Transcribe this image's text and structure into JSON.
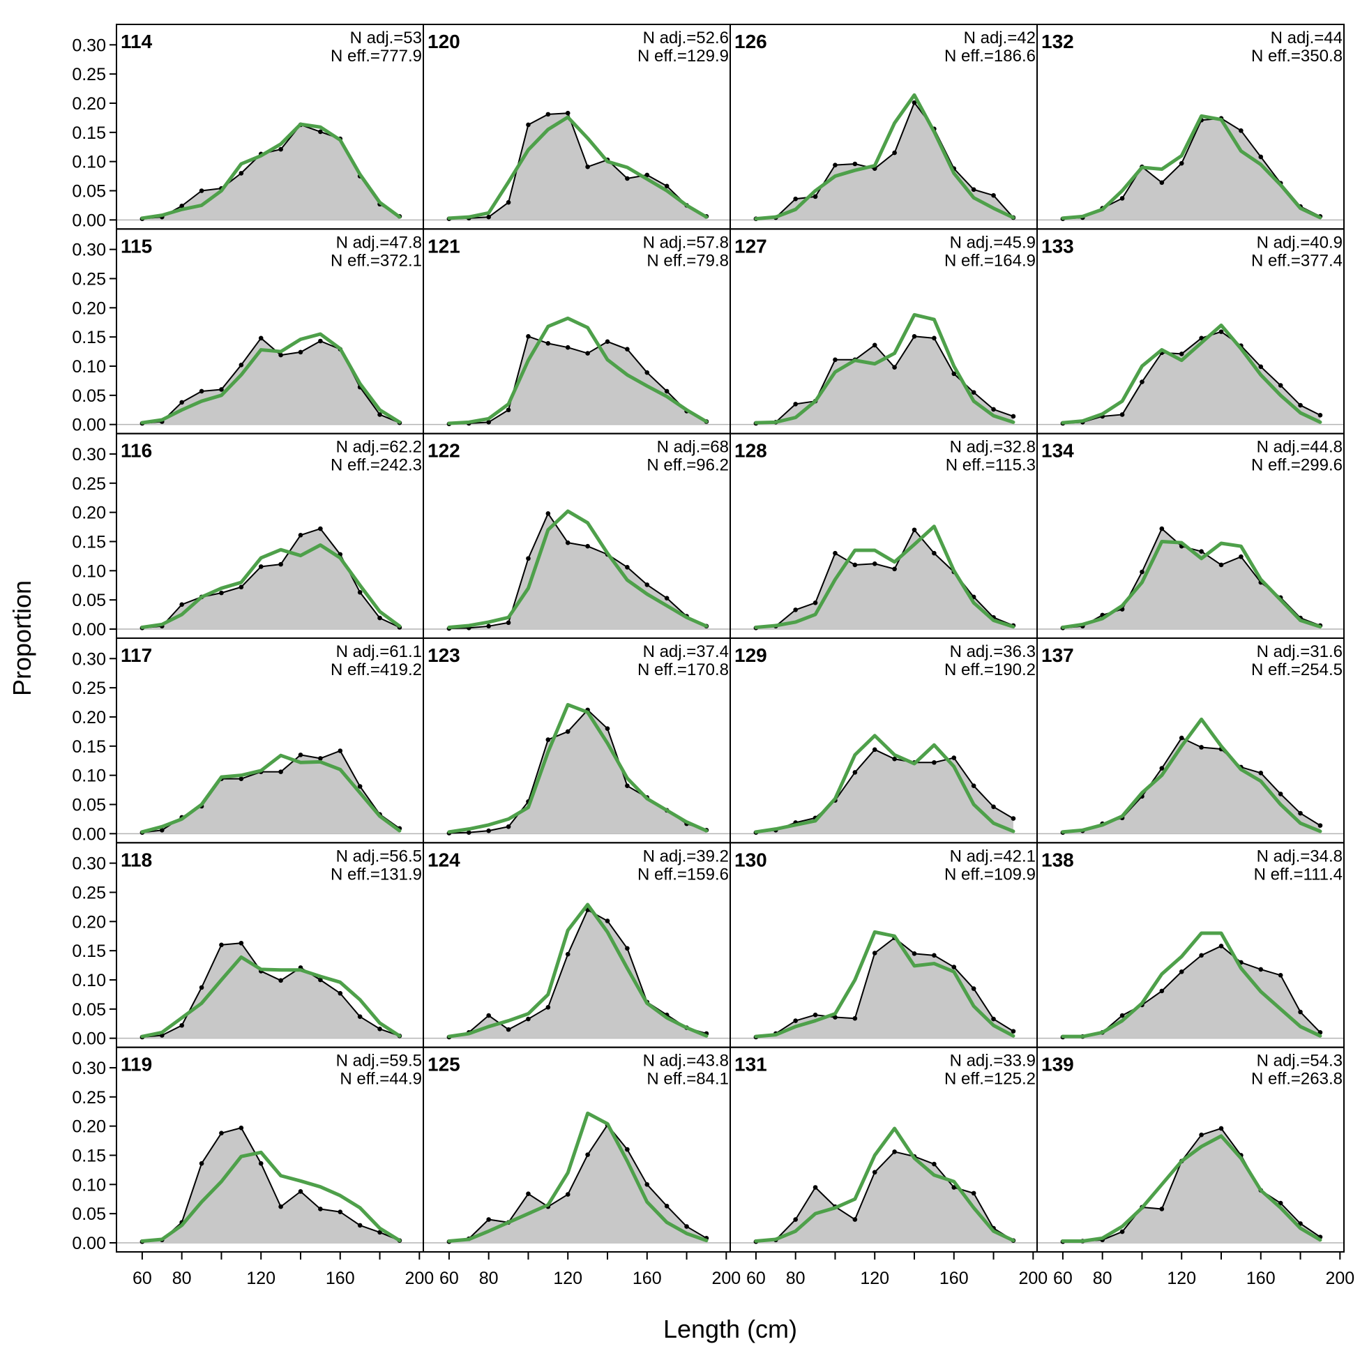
{
  "chart_data": {
    "type": "line",
    "xlabel": "Length (cm)",
    "ylabel": "Proportion",
    "xlim": [
      47,
      202
    ],
    "ylim": [
      0,
      0.335
    ],
    "x_ticks": [
      60,
      80,
      120,
      160,
      200
    ],
    "y_ticks": [
      "0.00",
      "0.05",
      "0.10",
      "0.15",
      "0.20",
      "0.25",
      "0.30"
    ],
    "x": [
      60,
      70,
      80,
      90,
      100,
      110,
      120,
      130,
      140,
      150,
      160,
      170,
      180,
      190
    ],
    "colors": {
      "observed_fill": "#c8c8c8",
      "observed_line": "#000000",
      "expected_line": "#4ea04a",
      "zero_line": "#b4b4b4"
    },
    "grid": false,
    "panels": [
      {
        "id": "114",
        "n_adj": "N adj.=53",
        "n_eff": "N eff.=777.9",
        "observed": [
          0.002,
          0.005,
          0.024,
          0.05,
          0.054,
          0.08,
          0.113,
          0.121,
          0.163,
          0.151,
          0.139,
          0.075,
          0.027,
          0.006
        ],
        "expected": [
          0.003,
          0.008,
          0.018,
          0.025,
          0.05,
          0.096,
          0.11,
          0.13,
          0.164,
          0.159,
          0.137,
          0.078,
          0.03,
          0.005
        ]
      },
      {
        "id": "115",
        "n_adj": "N adj.=47.8",
        "n_eff": "N eff.=372.1",
        "observed": [
          0.002,
          0.005,
          0.038,
          0.057,
          0.06,
          0.102,
          0.148,
          0.119,
          0.124,
          0.143,
          0.129,
          0.064,
          0.017,
          0.003
        ],
        "expected": [
          0.003,
          0.008,
          0.025,
          0.04,
          0.05,
          0.085,
          0.128,
          0.125,
          0.146,
          0.155,
          0.13,
          0.07,
          0.025,
          0.004
        ]
      },
      {
        "id": "116",
        "n_adj": "N adj.=62.2",
        "n_eff": "N eff.=242.3",
        "observed": [
          0.002,
          0.005,
          0.042,
          0.055,
          0.062,
          0.072,
          0.107,
          0.111,
          0.161,
          0.172,
          0.128,
          0.063,
          0.019,
          0.003
        ],
        "expected": [
          0.003,
          0.008,
          0.025,
          0.055,
          0.07,
          0.08,
          0.122,
          0.136,
          0.126,
          0.144,
          0.122,
          0.075,
          0.03,
          0.005
        ]
      },
      {
        "id": "117",
        "n_adj": "N adj.=61.1",
        "n_eff": "N eff.=419.2",
        "observed": [
          0.002,
          0.006,
          0.028,
          0.047,
          0.094,
          0.094,
          0.106,
          0.106,
          0.135,
          0.129,
          0.142,
          0.081,
          0.033,
          0.009
        ],
        "expected": [
          0.003,
          0.012,
          0.025,
          0.05,
          0.097,
          0.1,
          0.108,
          0.134,
          0.122,
          0.123,
          0.11,
          0.07,
          0.03,
          0.005
        ]
      },
      {
        "id": "118",
        "n_adj": "N adj.=56.5",
        "n_eff": "N eff.=131.9",
        "observed": [
          0.002,
          0.005,
          0.022,
          0.087,
          0.16,
          0.163,
          0.115,
          0.099,
          0.121,
          0.1,
          0.077,
          0.037,
          0.016,
          0.004
        ],
        "expected": [
          0.003,
          0.01,
          0.035,
          0.06,
          0.1,
          0.139,
          0.118,
          0.117,
          0.117,
          0.106,
          0.096,
          0.066,
          0.026,
          0.004
        ]
      },
      {
        "id": "119",
        "n_adj": "N adj.=59.5",
        "n_eff": "N eff.=44.9",
        "observed": [
          0.002,
          0.005,
          0.035,
          0.136,
          0.188,
          0.197,
          0.136,
          0.062,
          0.088,
          0.058,
          0.053,
          0.03,
          0.018,
          0.004
        ],
        "expected": [
          0.003,
          0.006,
          0.03,
          0.07,
          0.105,
          0.148,
          0.155,
          0.115,
          0.106,
          0.096,
          0.081,
          0.06,
          0.025,
          0.004
        ]
      },
      {
        "id": "120",
        "n_adj": "N adj.=52.6",
        "n_eff": "N eff.=129.9",
        "observed": [
          0.002,
          0.003,
          0.005,
          0.03,
          0.163,
          0.181,
          0.183,
          0.091,
          0.103,
          0.071,
          0.077,
          0.058,
          0.025,
          0.006
        ],
        "expected": [
          0.003,
          0.005,
          0.012,
          0.065,
          0.12,
          0.155,
          0.176,
          0.14,
          0.1,
          0.09,
          0.07,
          0.05,
          0.025,
          0.005
        ]
      },
      {
        "id": "121",
        "n_adj": "N adj.=57.8",
        "n_eff": "N eff.=79.8",
        "observed": [
          0.001,
          0.002,
          0.004,
          0.025,
          0.151,
          0.139,
          0.132,
          0.122,
          0.142,
          0.129,
          0.089,
          0.057,
          0.023,
          0.005
        ],
        "expected": [
          0.002,
          0.004,
          0.01,
          0.035,
          0.11,
          0.168,
          0.182,
          0.166,
          0.111,
          0.085,
          0.066,
          0.048,
          0.025,
          0.005
        ]
      },
      {
        "id": "122",
        "n_adj": "N adj.=68",
        "n_eff": "N eff.=96.2",
        "observed": [
          0.001,
          0.002,
          0.005,
          0.011,
          0.121,
          0.198,
          0.148,
          0.142,
          0.128,
          0.106,
          0.076,
          0.053,
          0.022,
          0.005
        ],
        "expected": [
          0.003,
          0.006,
          0.012,
          0.02,
          0.07,
          0.17,
          0.202,
          0.182,
          0.13,
          0.084,
          0.06,
          0.04,
          0.02,
          0.005
        ]
      },
      {
        "id": "123",
        "n_adj": "N adj.=37.4",
        "n_eff": "N eff.=170.8",
        "observed": [
          0.001,
          0.002,
          0.005,
          0.012,
          0.055,
          0.161,
          0.175,
          0.212,
          0.18,
          0.082,
          0.062,
          0.04,
          0.017,
          0.006
        ],
        "expected": [
          0.003,
          0.008,
          0.015,
          0.025,
          0.045,
          0.14,
          0.221,
          0.208,
          0.155,
          0.095,
          0.06,
          0.04,
          0.02,
          0.005
        ]
      },
      {
        "id": "124",
        "n_adj": "N adj.=39.2",
        "n_eff": "N eff.=159.6",
        "observed": [
          0.002,
          0.01,
          0.039,
          0.015,
          0.033,
          0.053,
          0.144,
          0.22,
          0.201,
          0.154,
          0.062,
          0.04,
          0.018,
          0.008
        ],
        "expected": [
          0.003,
          0.008,
          0.02,
          0.03,
          0.042,
          0.075,
          0.185,
          0.229,
          0.182,
          0.12,
          0.06,
          0.035,
          0.018,
          0.004
        ]
      },
      {
        "id": "125",
        "n_adj": "N adj.=43.8",
        "n_eff": "N eff.=84.1",
        "observed": [
          0.002,
          0.007,
          0.04,
          0.035,
          0.084,
          0.062,
          0.083,
          0.151,
          0.202,
          0.16,
          0.1,
          0.063,
          0.028,
          0.008
        ],
        "expected": [
          0.003,
          0.006,
          0.02,
          0.035,
          0.05,
          0.065,
          0.12,
          0.222,
          0.204,
          0.14,
          0.07,
          0.035,
          0.016,
          0.004
        ]
      },
      {
        "id": "126",
        "n_adj": "N adj.=42",
        "n_eff": "N eff.=186.6",
        "observed": [
          0.002,
          0.004,
          0.036,
          0.04,
          0.094,
          0.096,
          0.088,
          0.115,
          0.201,
          0.156,
          0.088,
          0.052,
          0.042,
          0.004
        ],
        "expected": [
          0.002,
          0.005,
          0.018,
          0.05,
          0.075,
          0.085,
          0.093,
          0.166,
          0.214,
          0.151,
          0.08,
          0.038,
          0.02,
          0.004
        ]
      },
      {
        "id": "127",
        "n_adj": "N adj.=45.9",
        "n_eff": "N eff.=164.9",
        "observed": [
          0.002,
          0.004,
          0.035,
          0.04,
          0.111,
          0.111,
          0.136,
          0.098,
          0.151,
          0.148,
          0.087,
          0.055,
          0.026,
          0.014
        ],
        "expected": [
          0.003,
          0.004,
          0.012,
          0.04,
          0.09,
          0.11,
          0.104,
          0.122,
          0.188,
          0.18,
          0.1,
          0.04,
          0.015,
          0.004
        ]
      },
      {
        "id": "128",
        "n_adj": "N adj.=32.8",
        "n_eff": "N eff.=115.3",
        "observed": [
          0.002,
          0.005,
          0.033,
          0.045,
          0.13,
          0.11,
          0.112,
          0.103,
          0.17,
          0.13,
          0.098,
          0.055,
          0.02,
          0.006
        ],
        "expected": [
          0.003,
          0.006,
          0.012,
          0.025,
          0.085,
          0.135,
          0.135,
          0.115,
          0.145,
          0.176,
          0.1,
          0.045,
          0.015,
          0.004
        ]
      },
      {
        "id": "129",
        "n_adj": "N adj.=36.3",
        "n_eff": "N eff.=190.2",
        "observed": [
          0.002,
          0.006,
          0.019,
          0.027,
          0.057,
          0.105,
          0.144,
          0.128,
          0.122,
          0.122,
          0.13,
          0.082,
          0.046,
          0.026
        ],
        "expected": [
          0.003,
          0.008,
          0.015,
          0.022,
          0.06,
          0.135,
          0.168,
          0.135,
          0.12,
          0.152,
          0.115,
          0.05,
          0.018,
          0.004
        ]
      },
      {
        "id": "130",
        "n_adj": "N adj.=42.1",
        "n_eff": "N eff.=109.9",
        "observed": [
          0.002,
          0.008,
          0.03,
          0.04,
          0.036,
          0.034,
          0.146,
          0.172,
          0.145,
          0.142,
          0.122,
          0.085,
          0.033,
          0.012
        ],
        "expected": [
          0.003,
          0.006,
          0.02,
          0.03,
          0.042,
          0.1,
          0.182,
          0.175,
          0.124,
          0.128,
          0.114,
          0.055,
          0.022,
          0.004
        ]
      },
      {
        "id": "131",
        "n_adj": "N adj.=33.9",
        "n_eff": "N eff.=125.2",
        "observed": [
          0.002,
          0.005,
          0.04,
          0.095,
          0.062,
          0.04,
          0.121,
          0.156,
          0.148,
          0.135,
          0.095,
          0.085,
          0.025,
          0.004
        ],
        "expected": [
          0.003,
          0.006,
          0.02,
          0.05,
          0.06,
          0.075,
          0.15,
          0.196,
          0.145,
          0.116,
          0.105,
          0.06,
          0.02,
          0.004
        ]
      },
      {
        "id": "132",
        "n_adj": "N adj.=44",
        "n_eff": "N eff.=350.8",
        "observed": [
          0.002,
          0.004,
          0.02,
          0.037,
          0.091,
          0.064,
          0.097,
          0.171,
          0.174,
          0.153,
          0.108,
          0.063,
          0.023,
          0.006
        ],
        "expected": [
          0.003,
          0.006,
          0.018,
          0.05,
          0.09,
          0.087,
          0.11,
          0.178,
          0.172,
          0.118,
          0.095,
          0.06,
          0.02,
          0.004
        ]
      },
      {
        "id": "133",
        "n_adj": "N adj.=40.9",
        "n_eff": "N eff.=377.4",
        "observed": [
          0.002,
          0.004,
          0.014,
          0.017,
          0.073,
          0.123,
          0.121,
          0.148,
          0.159,
          0.135,
          0.099,
          0.067,
          0.033,
          0.016
        ],
        "expected": [
          0.003,
          0.006,
          0.018,
          0.04,
          0.1,
          0.128,
          0.11,
          0.14,
          0.17,
          0.13,
          0.085,
          0.05,
          0.02,
          0.004
        ]
      },
      {
        "id": "134",
        "n_adj": "N adj.=44.8",
        "n_eff": "N eff.=299.6",
        "observed": [
          0.002,
          0.005,
          0.024,
          0.034,
          0.098,
          0.172,
          0.142,
          0.133,
          0.11,
          0.124,
          0.08,
          0.054,
          0.019,
          0.006
        ],
        "expected": [
          0.003,
          0.008,
          0.018,
          0.04,
          0.08,
          0.15,
          0.148,
          0.121,
          0.147,
          0.142,
          0.085,
          0.05,
          0.015,
          0.004
        ]
      },
      {
        "id": "137",
        "n_adj": "N adj.=31.6",
        "n_eff": "N eff.=254.5",
        "observed": [
          0.002,
          0.005,
          0.017,
          0.027,
          0.064,
          0.112,
          0.164,
          0.148,
          0.145,
          0.114,
          0.104,
          0.068,
          0.035,
          0.014
        ],
        "expected": [
          0.003,
          0.006,
          0.015,
          0.03,
          0.07,
          0.1,
          0.15,
          0.196,
          0.15,
          0.11,
          0.09,
          0.05,
          0.018,
          0.004
        ]
      },
      {
        "id": "138",
        "n_adj": "N adj.=34.8",
        "n_eff": "N eff.=111.4",
        "observed": [
          0.002,
          0.003,
          0.01,
          0.039,
          0.057,
          0.081,
          0.114,
          0.142,
          0.158,
          0.13,
          0.118,
          0.108,
          0.045,
          0.01
        ],
        "expected": [
          0.003,
          0.003,
          0.01,
          0.03,
          0.06,
          0.11,
          0.14,
          0.18,
          0.18,
          0.12,
          0.08,
          0.05,
          0.02,
          0.004
        ]
      },
      {
        "id": "139",
        "n_adj": "N adj.=54.3",
        "n_eff": "N eff.=263.8",
        "observed": [
          0.002,
          0.003,
          0.005,
          0.019,
          0.061,
          0.058,
          0.14,
          0.185,
          0.196,
          0.15,
          0.09,
          0.068,
          0.033,
          0.01
        ],
        "expected": [
          0.003,
          0.003,
          0.008,
          0.028,
          0.06,
          0.1,
          0.14,
          0.165,
          0.183,
          0.145,
          0.09,
          0.06,
          0.025,
          0.005
        ]
      }
    ]
  }
}
